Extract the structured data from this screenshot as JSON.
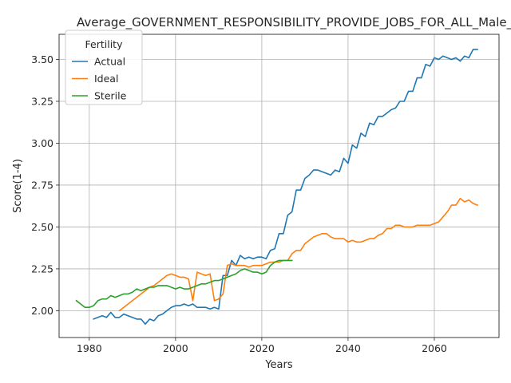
{
  "chart_data": {
    "type": "line",
    "title": "Average_GOVERNMENT_RESPONSIBILITY_PROVIDE_JOBS_FOR_ALL_Male_Q",
    "xlabel": "Years",
    "ylabel": "Score(1-4)",
    "xlim": [
      1973,
      2075
    ],
    "ylim": [
      1.84,
      3.65
    ],
    "x_ticks": [
      1980,
      2000,
      2020,
      2040,
      2060
    ],
    "y_ticks": [
      2.0,
      2.25,
      2.5,
      2.75,
      3.0,
      3.25,
      3.5
    ],
    "y_tick_labels": [
      "2.00",
      "2.25",
      "2.50",
      "2.75",
      "3.00",
      "3.25",
      "3.50"
    ],
    "grid": true,
    "legend": {
      "title": "Fertility",
      "placement": "top-left"
    },
    "series": [
      {
        "name": "Actual",
        "color": "#1f77b4",
        "x": [
          1981,
          1982,
          1983,
          1984,
          1985,
          1986,
          1987,
          1988,
          1989,
          1990,
          1991,
          1992,
          1993,
          1994,
          1995,
          1996,
          1997,
          1998,
          1999,
          2000,
          2001,
          2002,
          2003,
          2004,
          2005,
          2006,
          2007,
          2008,
          2009,
          2010,
          2011,
          2012,
          2013,
          2014,
          2015,
          2016,
          2017,
          2018,
          2019,
          2020,
          2021,
          2022,
          2023,
          2024,
          2025,
          2026,
          2027,
          2028,
          2029,
          2030,
          2031,
          2032,
          2033,
          2034,
          2035,
          2036,
          2037,
          2038,
          2039,
          2040,
          2041,
          2042,
          2043,
          2044,
          2045,
          2046,
          2047,
          2048,
          2049,
          2050,
          2051,
          2052,
          2053,
          2054,
          2055,
          2056,
          2057,
          2058,
          2059,
          2060,
          2061,
          2062,
          2063,
          2064,
          2065,
          2066,
          2067,
          2068,
          2069,
          2070
        ],
        "y": [
          1.95,
          1.96,
          1.97,
          1.96,
          1.99,
          1.96,
          1.96,
          1.98,
          1.97,
          1.96,
          1.95,
          1.95,
          1.92,
          1.95,
          1.94,
          1.97,
          1.98,
          2.0,
          2.02,
          2.03,
          2.03,
          2.04,
          2.03,
          2.04,
          2.02,
          2.02,
          2.02,
          2.01,
          2.02,
          2.01,
          2.21,
          2.21,
          2.3,
          2.27,
          2.33,
          2.31,
          2.32,
          2.31,
          2.32,
          2.32,
          2.31,
          2.36,
          2.37,
          2.46,
          2.46,
          2.57,
          2.59,
          2.72,
          2.72,
          2.79,
          2.81,
          2.84,
          2.84,
          2.83,
          2.82,
          2.81,
          2.84,
          2.83,
          2.91,
          2.88,
          2.99,
          2.97,
          3.06,
          3.04,
          3.12,
          3.11,
          3.16,
          3.16,
          3.18,
          3.2,
          3.21,
          3.25,
          3.25,
          3.31,
          3.31,
          3.39,
          3.39,
          3.47,
          3.46,
          3.51,
          3.5,
          3.52,
          3.51,
          3.5,
          3.51,
          3.49,
          3.52,
          3.51,
          3.56,
          3.56
        ]
      },
      {
        "name": "Ideal",
        "color": "#ff7f0e",
        "x": [
          1987,
          1988,
          1989,
          1990,
          1991,
          1992,
          1993,
          1994,
          1995,
          1996,
          1997,
          1998,
          1999,
          2000,
          2001,
          2002,
          2003,
          2004,
          2005,
          2006,
          2007,
          2008,
          2009,
          2010,
          2011,
          2012,
          2013,
          2014,
          2015,
          2016,
          2017,
          2018,
          2019,
          2020,
          2021,
          2022,
          2023,
          2024,
          2025,
          2026,
          2027,
          2028,
          2029,
          2030,
          2031,
          2032,
          2033,
          2034,
          2035,
          2036,
          2037,
          2038,
          2039,
          2040,
          2041,
          2042,
          2043,
          2044,
          2045,
          2046,
          2047,
          2048,
          2049,
          2050,
          2051,
          2052,
          2053,
          2054,
          2055,
          2056,
          2057,
          2058,
          2059,
          2060,
          2061,
          2062,
          2063,
          2064,
          2065,
          2066,
          2067,
          2068,
          2069,
          2070
        ],
        "y": [
          2.0,
          2.02,
          2.04,
          2.06,
          2.08,
          2.1,
          2.12,
          2.14,
          2.15,
          2.17,
          2.19,
          2.21,
          2.22,
          2.21,
          2.2,
          2.2,
          2.19,
          2.06,
          2.23,
          2.22,
          2.21,
          2.22,
          2.06,
          2.07,
          2.1,
          2.27,
          2.28,
          2.27,
          2.27,
          2.27,
          2.26,
          2.27,
          2.27,
          2.27,
          2.28,
          2.29,
          2.29,
          2.29,
          2.3,
          2.3,
          2.34,
          2.36,
          2.36,
          2.4,
          2.42,
          2.44,
          2.45,
          2.46,
          2.46,
          2.44,
          2.43,
          2.43,
          2.43,
          2.41,
          2.42,
          2.41,
          2.41,
          2.42,
          2.43,
          2.43,
          2.45,
          2.46,
          2.49,
          2.49,
          2.51,
          2.51,
          2.5,
          2.5,
          2.5,
          2.51,
          2.51,
          2.51,
          2.51,
          2.52,
          2.53,
          2.56,
          2.59,
          2.63,
          2.63,
          2.67,
          2.65,
          2.66,
          2.64,
          2.63
        ]
      },
      {
        "name": "Sterile",
        "color": "#2ca02c",
        "x": [
          1977,
          1978,
          1979,
          1980,
          1981,
          1982,
          1983,
          1984,
          1985,
          1986,
          1987,
          1988,
          1989,
          1990,
          1991,
          1992,
          1993,
          1994,
          1995,
          1996,
          1997,
          1998,
          1999,
          2000,
          2001,
          2002,
          2003,
          2004,
          2005,
          2006,
          2007,
          2008,
          2009,
          2010,
          2011,
          2012,
          2013,
          2014,
          2015,
          2016,
          2017,
          2018,
          2019,
          2020,
          2021,
          2022,
          2023,
          2024,
          2025,
          2026,
          2027
        ],
        "y": [
          2.06,
          2.04,
          2.02,
          2.02,
          2.03,
          2.06,
          2.07,
          2.07,
          2.09,
          2.08,
          2.09,
          2.1,
          2.1,
          2.11,
          2.13,
          2.12,
          2.13,
          2.14,
          2.14,
          2.15,
          2.15,
          2.15,
          2.14,
          2.13,
          2.14,
          2.13,
          2.13,
          2.14,
          2.15,
          2.16,
          2.16,
          2.17,
          2.18,
          2.18,
          2.19,
          2.2,
          2.21,
          2.22,
          2.24,
          2.25,
          2.24,
          2.23,
          2.23,
          2.22,
          2.23,
          2.27,
          2.29,
          2.3,
          2.3,
          2.3,
          2.3
        ]
      }
    ]
  }
}
